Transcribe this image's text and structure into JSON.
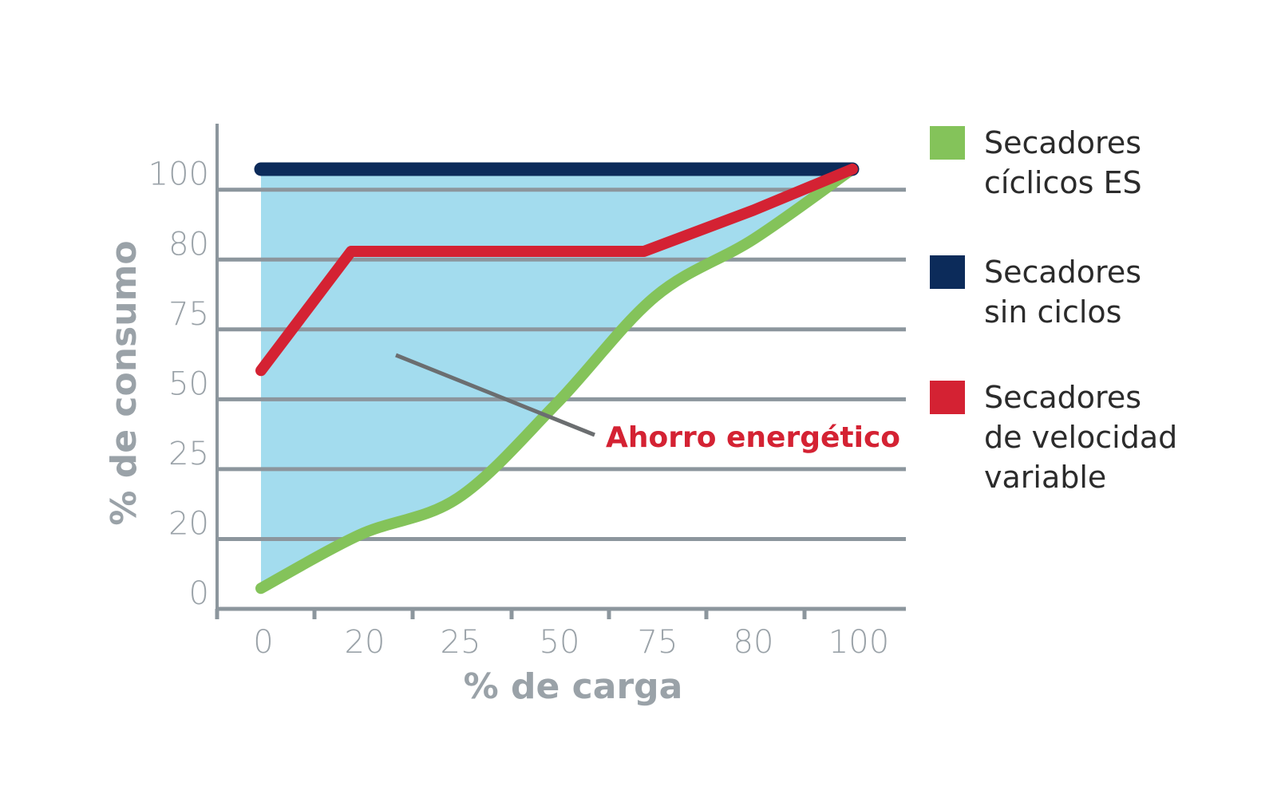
{
  "chart_data": {
    "type": "line",
    "xlabel": "% de carga",
    "ylabel": "% de consumo",
    "x_tick_labels": [
      "0",
      "20",
      "25",
      "50",
      "75",
      "80",
      "100"
    ],
    "y_tick_labels": [
      "0",
      "20",
      "25",
      "50",
      "75",
      "80",
      "100"
    ],
    "grid": "horizontal",
    "legend_position": "right",
    "series": [
      {
        "name": "Secadores cíclicos ES",
        "legend_lines": [
          "Secadores",
          "cíclicos ES"
        ],
        "color": "#84c35a",
        "curve": "smooth",
        "x": [
          "0",
          "20",
          "25",
          "50",
          "75",
          "80",
          "100"
        ],
        "values": [
          5,
          18,
          27,
          50,
          76,
          90,
          107
        ]
      },
      {
        "name": "Secadores sin ciclos",
        "legend_lines": [
          "Secadores",
          "sin ciclos"
        ],
        "color": "#0c2b5a",
        "x": [
          "0",
          "100"
        ],
        "values": [
          107,
          107
        ]
      },
      {
        "name": "Secadores de velocidad variable",
        "legend_lines": [
          "Secadores",
          "de velocidad",
          "variable"
        ],
        "color": "#d42233",
        "x": [
          "0",
          "20",
          "25",
          "50",
          "75",
          "80",
          "100"
        ],
        "values": [
          58,
          87,
          87,
          87,
          87,
          97,
          107
        ]
      }
    ],
    "shaded_region": {
      "between": [
        "Secadores sin ciclos",
        "Secadores cíclicos ES"
      ],
      "color": "#a3dcee"
    },
    "annotation": {
      "text": "Ahorro energético",
      "color": "#d42233",
      "pointer_color": "#6b6e70"
    },
    "axis_color": "#8c969d",
    "grid_color": "#8c969d"
  }
}
